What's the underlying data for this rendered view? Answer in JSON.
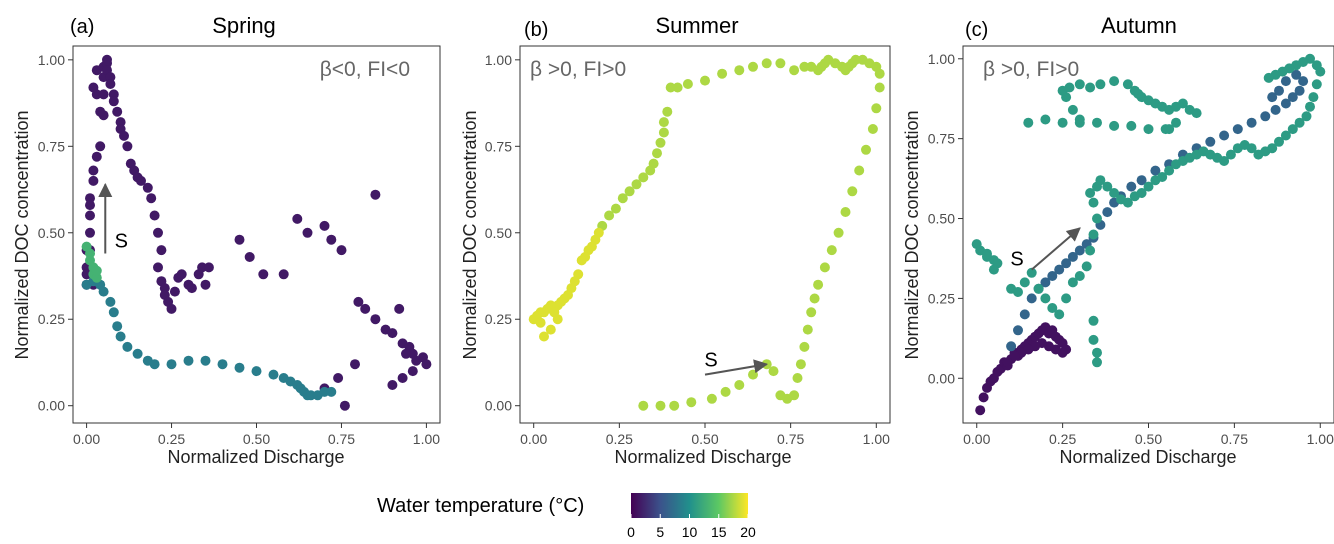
{
  "colorbar": {
    "title": "Water temperature (°C)",
    "ticks": [
      0,
      5,
      10,
      15,
      20
    ],
    "range": [
      0,
      20
    ],
    "palette": [
      "#440154",
      "#3b528b",
      "#21908c",
      "#5dc863",
      "#fde725"
    ]
  },
  "chart_data": [
    {
      "type": "scatter",
      "panel_label": "(a)",
      "title": "Spring",
      "annotation": "β<0, FI<0",
      "start_label": "S",
      "xlabel": "Normalized Discharge",
      "ylabel": "Normalized DOC concentration",
      "xlim": [
        -0.04,
        1.04
      ],
      "ylim": [
        -0.05,
        1.04
      ],
      "xticks": [
        0.0,
        0.25,
        0.5,
        0.75,
        1.0
      ],
      "yticks": [
        0.0,
        0.25,
        0.5,
        0.75,
        1.0
      ],
      "xtick_labels": [
        "0.00",
        "0.25",
        "0.50",
        "0.75",
        "1.00"
      ],
      "ytick_labels": [
        "0.00",
        "0.25",
        "0.50",
        "0.75",
        "1.00"
      ],
      "grid": false,
      "start_arrow": {
        "from": [
          0.055,
          0.44
        ],
        "to": [
          0.055,
          0.64
        ]
      },
      "series": [
        {
          "color_temp": 1.5,
          "x": [
            0.0,
            0.0,
            0.0,
            0.01,
            0.01,
            0.01,
            0.02,
            0.02,
            0.03,
            0.04,
            0.05,
            0.03,
            0.03,
            0.02,
            0.01,
            0.01,
            0.0,
            0.02,
            0.04,
            0.05,
            0.05,
            0.05,
            0.06,
            0.06,
            0.06,
            0.07,
            0.07,
            0.08,
            0.08,
            0.09,
            0.1,
            0.1,
            0.11,
            0.12,
            0.13,
            0.14,
            0.15,
            0.16,
            0.18,
            0.19,
            0.2,
            0.21,
            0.22,
            0.21,
            0.22,
            0.23,
            0.23,
            0.24,
            0.25,
            0.26,
            0.27,
            0.28,
            0.3,
            0.31,
            0.33,
            0.34,
            0.35,
            0.36,
            0.45,
            0.48,
            0.52,
            0.58,
            0.62,
            0.65,
            0.7,
            0.72,
            0.75,
            0.8,
            0.82,
            0.85,
            0.88,
            0.9,
            0.93,
            0.95,
            0.96,
            0.97,
            0.99,
            1.0,
            0.85,
            0.79,
            0.74,
            0.7,
            0.76,
            0.92,
            0.94,
            0.96,
            0.93,
            0.9
          ],
          "y": [
            0.35,
            0.4,
            0.45,
            0.5,
            0.55,
            0.6,
            0.65,
            0.68,
            0.72,
            0.75,
            0.84,
            0.9,
            0.97,
            0.92,
            0.58,
            0.45,
            0.38,
            0.35,
            0.85,
            0.9,
            0.95,
            0.98,
            1.0,
            0.99,
            0.97,
            0.95,
            0.93,
            0.9,
            0.88,
            0.85,
            0.82,
            0.8,
            0.78,
            0.75,
            0.7,
            0.68,
            0.66,
            0.65,
            0.63,
            0.6,
            0.55,
            0.5,
            0.45,
            0.4,
            0.36,
            0.34,
            0.32,
            0.3,
            0.28,
            0.33,
            0.37,
            0.38,
            0.35,
            0.34,
            0.38,
            0.4,
            0.35,
            0.4,
            0.48,
            0.43,
            0.38,
            0.38,
            0.54,
            0.5,
            0.52,
            0.48,
            0.45,
            0.3,
            0.28,
            0.25,
            0.22,
            0.21,
            0.18,
            0.17,
            0.15,
            0.13,
            0.14,
            0.12,
            0.61,
            0.12,
            0.08,
            0.05,
            0.0,
            0.28,
            0.15,
            0.1,
            0.08,
            0.06
          ]
        },
        {
          "color_temp": 8.5,
          "x": [
            0.0,
            0.02,
            0.04,
            0.05,
            0.07,
            0.08,
            0.09,
            0.1,
            0.12,
            0.15,
            0.18,
            0.2,
            0.25,
            0.3,
            0.35,
            0.4,
            0.45,
            0.5,
            0.55,
            0.58,
            0.6,
            0.62,
            0.63,
            0.64,
            0.65,
            0.66,
            0.68,
            0.7,
            0.72
          ],
          "y": [
            0.35,
            0.36,
            0.35,
            0.33,
            0.3,
            0.27,
            0.23,
            0.2,
            0.17,
            0.15,
            0.13,
            0.12,
            0.12,
            0.13,
            0.13,
            0.12,
            0.11,
            0.1,
            0.09,
            0.08,
            0.07,
            0.06,
            0.05,
            0.04,
            0.03,
            0.03,
            0.03,
            0.04,
            0.04
          ]
        },
        {
          "color_temp": 13.0,
          "x": [
            0.0,
            0.01,
            0.01,
            0.02,
            0.02,
            0.03,
            0.03
          ],
          "y": [
            0.46,
            0.44,
            0.42,
            0.4,
            0.38,
            0.37,
            0.39
          ]
        }
      ]
    },
    {
      "type": "scatter",
      "panel_label": "(b)",
      "title": "Summer",
      "annotation": "β >0, FI>0",
      "start_label": "S",
      "xlabel": "Normalized Discharge",
      "ylabel": "Normalized DOC concentration",
      "xlim": [
        -0.04,
        1.04
      ],
      "ylim": [
        -0.05,
        1.04
      ],
      "xticks": [
        0.0,
        0.25,
        0.5,
        0.75,
        1.0
      ],
      "yticks": [
        0.0,
        0.25,
        0.5,
        0.75,
        1.0
      ],
      "xtick_labels": [
        "0.00",
        "0.25",
        "0.50",
        "0.75",
        "1.00"
      ],
      "ytick_labels": [
        "0.00",
        "0.25",
        "0.50",
        "0.75",
        "1.00"
      ],
      "grid": false,
      "start_arrow": {
        "from": [
          0.5,
          0.09
        ],
        "to": [
          0.68,
          0.12
        ]
      },
      "series": [
        {
          "color_temp": 17.5,
          "x": [
            0.32,
            0.37,
            0.41,
            0.46,
            0.52,
            0.56,
            0.6,
            0.64,
            0.68,
            0.7,
            0.72,
            0.74,
            0.76,
            0.77,
            0.78,
            0.79,
            0.8,
            0.81,
            0.82,
            0.83,
            0.85,
            0.87,
            0.89,
            0.91,
            0.93,
            0.95,
            0.97,
            0.99,
            1.0,
            1.01,
            1.01,
            1.0,
            0.98,
            0.96,
            0.94,
            0.93,
            0.92,
            0.91,
            0.9,
            0.88,
            0.86,
            0.85,
            0.84,
            0.83,
            0.81,
            0.79,
            0.76,
            0.72,
            0.68,
            0.64,
            0.6,
            0.55,
            0.5,
            0.45,
            0.42,
            0.4,
            0.39,
            0.38,
            0.38,
            0.37,
            0.36,
            0.35,
            0.34,
            0.32,
            0.3,
            0.28,
            0.26,
            0.24,
            0.22,
            0.2
          ],
          "y": [
            0.0,
            0.0,
            0.0,
            0.01,
            0.02,
            0.04,
            0.06,
            0.09,
            0.12,
            0.1,
            0.03,
            0.02,
            0.03,
            0.08,
            0.12,
            0.17,
            0.22,
            0.27,
            0.31,
            0.35,
            0.4,
            0.45,
            0.5,
            0.56,
            0.62,
            0.68,
            0.74,
            0.8,
            0.86,
            0.92,
            0.96,
            0.98,
            0.99,
            1.0,
            1.0,
            0.99,
            0.98,
            0.97,
            0.98,
            0.99,
            1.0,
            0.99,
            0.98,
            0.97,
            0.98,
            0.98,
            0.97,
            0.99,
            0.99,
            0.98,
            0.97,
            0.96,
            0.94,
            0.93,
            0.92,
            0.92,
            0.85,
            0.82,
            0.79,
            0.76,
            0.73,
            0.7,
            0.68,
            0.66,
            0.64,
            0.62,
            0.6,
            0.57,
            0.55,
            0.52
          ]
        },
        {
          "color_temp": 19.0,
          "x": [
            0.19,
            0.18,
            0.17,
            0.16,
            0.15,
            0.14,
            0.13,
            0.12,
            0.11,
            0.1,
            0.09,
            0.08,
            0.07,
            0.06,
            0.05,
            0.04,
            0.03,
            0.02,
            0.01,
            0.0,
            0.02,
            0.05,
            0.07,
            0.06,
            0.03
          ],
          "y": [
            0.5,
            0.48,
            0.46,
            0.45,
            0.43,
            0.42,
            0.38,
            0.36,
            0.34,
            0.32,
            0.31,
            0.3,
            0.29,
            0.28,
            0.29,
            0.28,
            0.27,
            0.27,
            0.26,
            0.25,
            0.24,
            0.22,
            0.25,
            0.27,
            0.2
          ]
        }
      ]
    },
    {
      "type": "scatter",
      "panel_label": "(c)",
      "title": "Autumn",
      "annotation": "β >0, FI>0",
      "start_label": "S",
      "xlabel": "Normalized Discharge",
      "ylabel": "Normalized DOC concentration",
      "xlim": [
        -0.04,
        1.04
      ],
      "ylim": [
        -0.14,
        1.04
      ],
      "xticks": [
        0.0,
        0.25,
        0.5,
        0.75,
        1.0
      ],
      "yticks": [
        0.0,
        0.25,
        0.5,
        0.75,
        1.0
      ],
      "xtick_labels": [
        "0.00",
        "0.25",
        "0.50",
        "0.75",
        "1.00"
      ],
      "ytick_labels": [
        "0.00",
        "0.25",
        "0.50",
        "0.75",
        "1.00"
      ],
      "grid": false,
      "start_arrow": {
        "from": [
          0.16,
          0.34
        ],
        "to": [
          0.3,
          0.47
        ]
      },
      "series": [
        {
          "color_temp": 1.0,
          "x": [
            0.01,
            0.02,
            0.03,
            0.04,
            0.05,
            0.06,
            0.07,
            0.08,
            0.09,
            0.1,
            0.11,
            0.12,
            0.13,
            0.14,
            0.15,
            0.16,
            0.17,
            0.18,
            0.19,
            0.2,
            0.21,
            0.22,
            0.23,
            0.24,
            0.25,
            0.26,
            0.25,
            0.23,
            0.21,
            0.19,
            0.17,
            0.15,
            0.13,
            0.11,
            0.09
          ],
          "y": [
            -0.1,
            -0.06,
            -0.03,
            -0.01,
            0.0,
            0.02,
            0.03,
            0.05,
            0.04,
            0.06,
            0.08,
            0.07,
            0.09,
            0.1,
            0.11,
            0.12,
            0.13,
            0.14,
            0.15,
            0.16,
            0.14,
            0.15,
            0.13,
            0.12,
            0.11,
            0.09,
            0.08,
            0.09,
            0.1,
            0.11,
            0.1,
            0.09,
            0.08,
            0.07,
            0.05
          ]
        },
        {
          "color_temp": 6.5,
          "x": [
            0.1,
            0.12,
            0.14,
            0.16,
            0.18,
            0.2,
            0.22,
            0.24,
            0.26,
            0.28,
            0.3,
            0.32,
            0.34,
            0.36,
            0.38,
            0.4,
            0.42,
            0.45,
            0.48,
            0.52,
            0.56,
            0.6,
            0.64,
            0.68,
            0.72,
            0.76,
            0.8,
            0.84,
            0.87,
            0.9,
            0.92,
            0.94,
            0.95,
            0.93,
            0.9,
            0.88,
            0.86
          ],
          "y": [
            0.1,
            0.15,
            0.2,
            0.25,
            0.28,
            0.3,
            0.32,
            0.34,
            0.36,
            0.38,
            0.4,
            0.42,
            0.44,
            0.48,
            0.52,
            0.55,
            0.57,
            0.6,
            0.62,
            0.65,
            0.67,
            0.7,
            0.72,
            0.74,
            0.76,
            0.78,
            0.8,
            0.82,
            0.84,
            0.86,
            0.88,
            0.9,
            0.93,
            0.95,
            0.93,
            0.9,
            0.88
          ]
        },
        {
          "color_temp": 11.0,
          "x": [
            0.0,
            0.01,
            0.03,
            0.05,
            0.06,
            0.05,
            0.03,
            0.1,
            0.12,
            0.14,
            0.16,
            0.18,
            0.2,
            0.22,
            0.24,
            0.26,
            0.28,
            0.3,
            0.32,
            0.33,
            0.34,
            0.35,
            0.34,
            0.33,
            0.35,
            0.36,
            0.38,
            0.4,
            0.42,
            0.44,
            0.46,
            0.48,
            0.5,
            0.52,
            0.54,
            0.56,
            0.58,
            0.6,
            0.62,
            0.64,
            0.66,
            0.68,
            0.7,
            0.72,
            0.74,
            0.76,
            0.78,
            0.8,
            0.82,
            0.84,
            0.86,
            0.88,
            0.9,
            0.92,
            0.94,
            0.96,
            0.97,
            0.98,
            0.99,
            1.0,
            0.99,
            0.97,
            0.95,
            0.93,
            0.91,
            0.89,
            0.87,
            0.85,
            0.3,
            0.28,
            0.26,
            0.25,
            0.27,
            0.3,
            0.33,
            0.36,
            0.4,
            0.44,
            0.46,
            0.47,
            0.48,
            0.5,
            0.52,
            0.54,
            0.56,
            0.58,
            0.6,
            0.62,
            0.64,
            0.58,
            0.56,
            0.55,
            0.5,
            0.45,
            0.4,
            0.35,
            0.3,
            0.25,
            0.2,
            0.15,
            0.34,
            0.34,
            0.35,
            0.35
          ],
          "y": [
            0.42,
            0.4,
            0.38,
            0.37,
            0.36,
            0.34,
            0.39,
            0.28,
            0.27,
            0.3,
            0.33,
            0.28,
            0.25,
            0.22,
            0.2,
            0.25,
            0.3,
            0.32,
            0.35,
            0.4,
            0.45,
            0.5,
            0.55,
            0.58,
            0.6,
            0.62,
            0.6,
            0.58,
            0.56,
            0.55,
            0.57,
            0.58,
            0.6,
            0.62,
            0.63,
            0.65,
            0.67,
            0.68,
            0.69,
            0.7,
            0.71,
            0.7,
            0.69,
            0.68,
            0.7,
            0.72,
            0.73,
            0.72,
            0.7,
            0.71,
            0.72,
            0.74,
            0.76,
            0.78,
            0.8,
            0.82,
            0.85,
            0.88,
            0.92,
            0.96,
            0.98,
            1.0,
            0.99,
            0.98,
            0.97,
            0.96,
            0.95,
            0.94,
            0.81,
            0.84,
            0.88,
            0.9,
            0.91,
            0.92,
            0.91,
            0.92,
            0.93,
            0.92,
            0.9,
            0.89,
            0.88,
            0.87,
            0.86,
            0.85,
            0.84,
            0.85,
            0.86,
            0.84,
            0.83,
            0.8,
            0.78,
            0.78,
            0.78,
            0.79,
            0.79,
            0.8,
            0.8,
            0.8,
            0.81,
            0.8,
            0.18,
            0.12,
            0.08,
            0.05
          ]
        }
      ]
    }
  ]
}
